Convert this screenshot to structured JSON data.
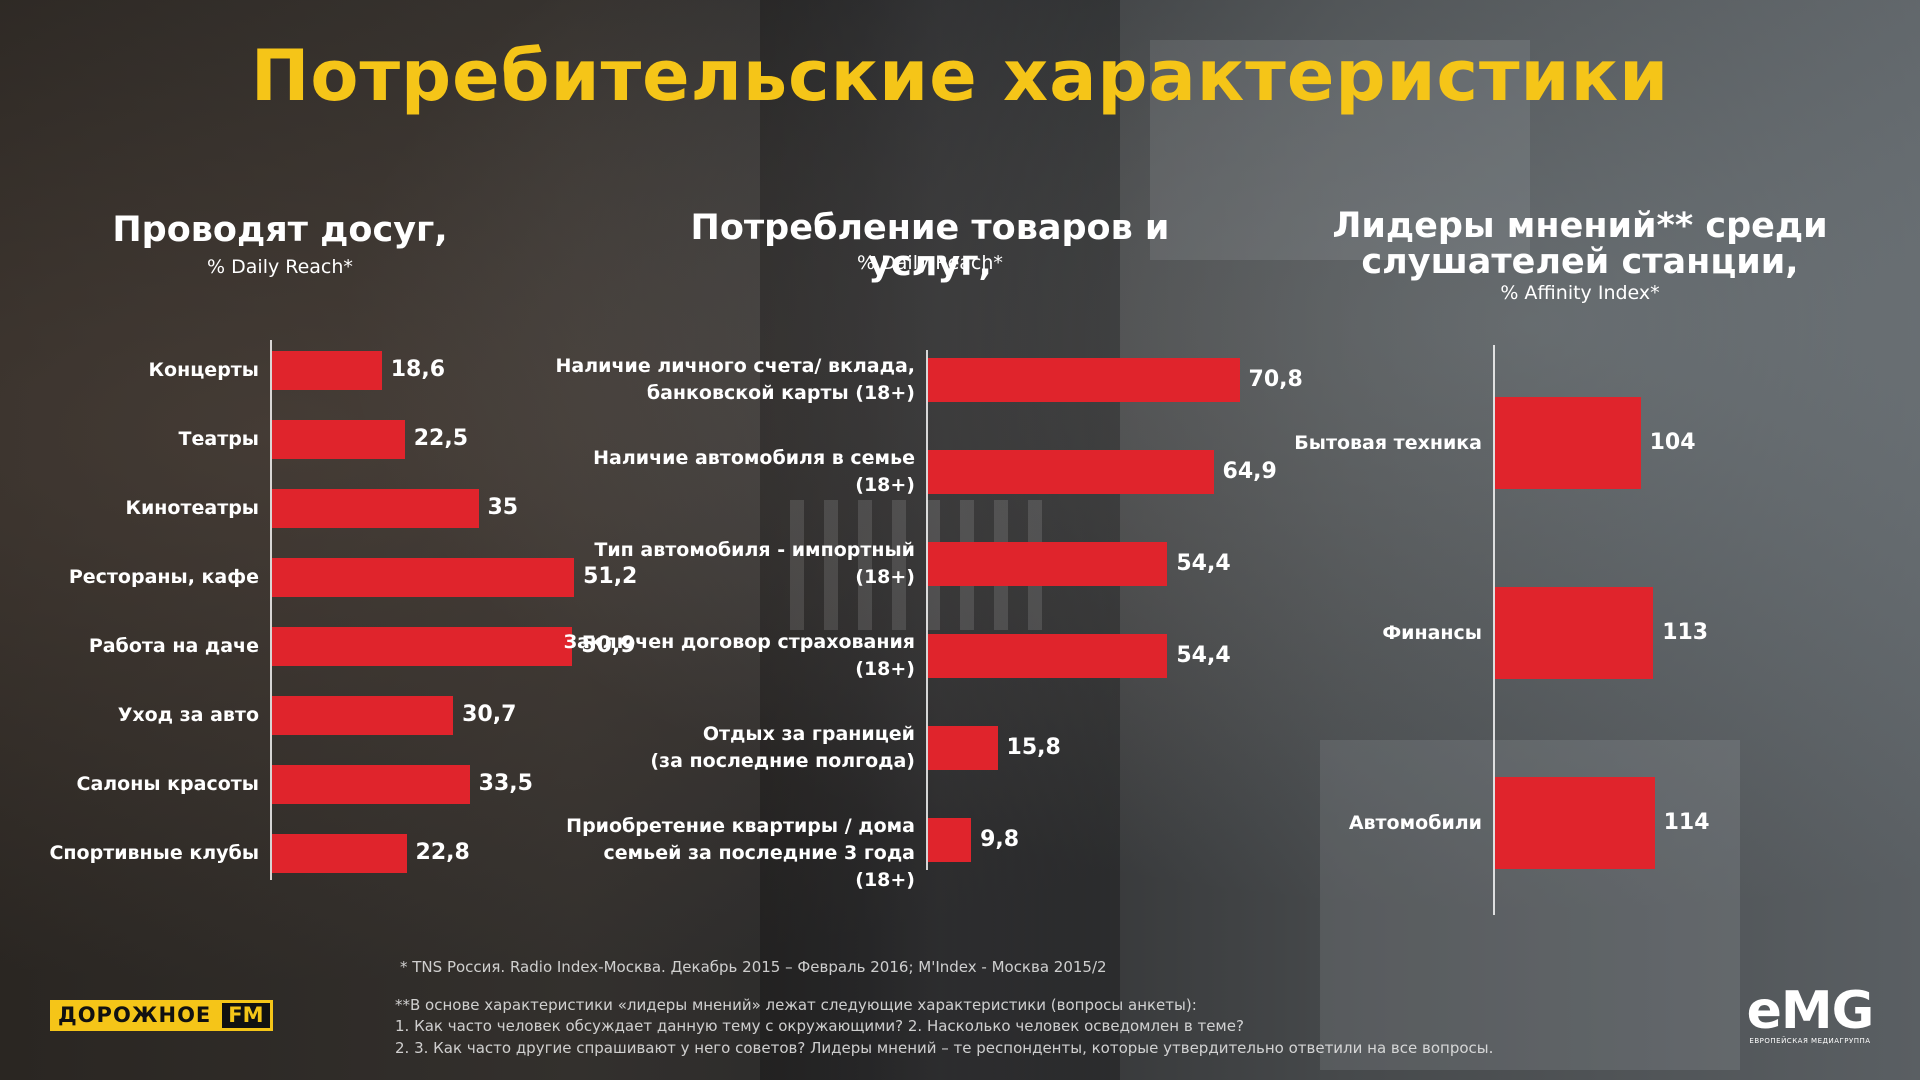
{
  "title": "Потребительские характеристики",
  "colors": {
    "title": "#f5c518",
    "bar": "#e0242c",
    "text": "#ffffff"
  },
  "sections": [
    {
      "title": "Проводят досуг,",
      "subtitle": "% Daily Reach*"
    },
    {
      "title": "Потребление товаров и услуг,",
      "subtitle": "% Daily Reach*"
    },
    {
      "title": "Лидеры мнений** среди слушателей станции,",
      "subtitle": "% Affinity Index*"
    }
  ],
  "chart_data": [
    {
      "type": "bar",
      "orientation": "horizontal",
      "title": "Проводят досуг,",
      "subtitle": "% Daily Reach*",
      "categories": [
        "Концерты",
        "Театры",
        "Кинотеатры",
        "Рестораны, кафе",
        "Работа на даче",
        "Уход за авто",
        "Салоны красоты",
        "Спортивные клубы"
      ],
      "values": [
        18.6,
        22.5,
        35,
        51.2,
        50.9,
        30.7,
        33.5,
        22.8
      ],
      "value_labels": [
        "18,6",
        "22,5",
        "35",
        "51,2",
        "50,9",
        "30,7",
        "33,5",
        "22,8"
      ]
    },
    {
      "type": "bar",
      "orientation": "horizontal",
      "title": "Потребление товаров и услуг,",
      "subtitle": "% Daily Reach*",
      "categories": [
        [
          "Наличие личного счета/ вклада,",
          "банковской карты (18+)"
        ],
        [
          "Наличие автомобиля в семье",
          "(18+)"
        ],
        [
          "Тип автомобиля - импортный",
          "(18+)"
        ],
        [
          "Заключен договор страхования",
          "(18+)"
        ],
        [
          "Отдых за границей",
          "(за последние полгода)"
        ],
        [
          "Приобретение квартиры / дома",
          "семьей за последние 3 года (18+)"
        ]
      ],
      "values": [
        70.8,
        64.9,
        54.4,
        54.4,
        15.8,
        9.8
      ],
      "value_labels": [
        "70,8",
        "64,9",
        "54,4",
        "54,4",
        "15,8",
        "9,8"
      ]
    },
    {
      "type": "bar",
      "orientation": "horizontal",
      "title": "Лидеры мнений** среди слушателей станции,",
      "subtitle": "% Affinity Index*",
      "categories": [
        "Бытовая техника",
        "Финансы",
        "Автомобили"
      ],
      "values": [
        104,
        113,
        114
      ],
      "value_labels": [
        "104",
        "113",
        "114"
      ]
    }
  ],
  "footnotes": {
    "source": "* TNS Россия. Radio Index-Москва. Декабрь 2015 – Февраль 2016;  M'Index - Москва 2015/2",
    "note": "**В основе характеристики «лидеры мнений» лежат следующие характеристики (вопросы анкеты):",
    "q1": "1.     Как часто человек обсуждает данную тему с окружающими? 2. Насколько человек осведомлен в теме?",
    "q2": "2.     3. Как часто другие спрашивают у него советов? Лидеры мнений – те респонденты, которые утвердительно ответили на все вопросы."
  },
  "logos": {
    "left_a": "ДОРОЖНОЕ",
    "left_b": "FM",
    "right_main": "eMG",
    "right_sub": "ЕВРОПЕЙСКАЯ МЕДИАГРУППА"
  }
}
